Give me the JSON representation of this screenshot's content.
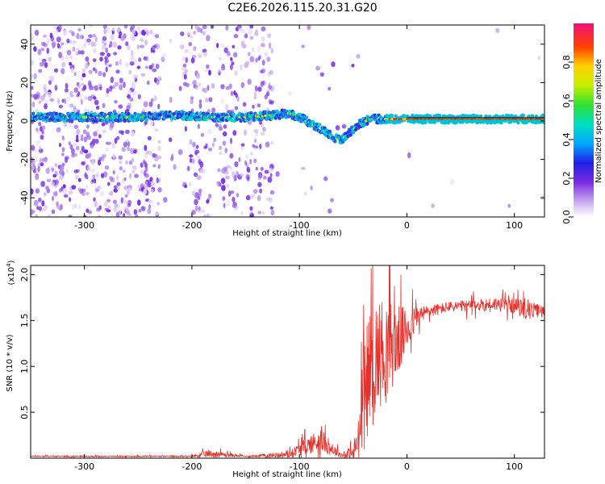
{
  "title": "C2E6.2026.115.20.31.G20",
  "chart_data": [
    {
      "type": "heatmap",
      "name": "spectrogram",
      "xlabel": "Height of straight line (km)",
      "ylabel": "Frequency (Hz)",
      "xlim": [
        -350,
        128
      ],
      "ylim": [
        -50,
        50
      ],
      "xticks": [
        -300,
        -200,
        -100,
        0,
        100
      ],
      "yticks": [
        -40,
        -20,
        0,
        20,
        40
      ],
      "center_line_freq": 0,
      "trace": {
        "x": [
          -350,
          -300,
          -250,
          -210,
          -180,
          -150,
          -125,
          -110,
          -100,
          -90,
          -80,
          -70,
          -62,
          -55,
          -45,
          -35,
          -25,
          -15,
          0,
          10,
          128
        ],
        "y": [
          2,
          2,
          2,
          3,
          2,
          2,
          3,
          4,
          2,
          -1,
          -4,
          -8,
          -10,
          -7,
          -2,
          1,
          1,
          1,
          1,
          1,
          1
        ]
      },
      "colorbar": {
        "label": "Normalized spectral amplitude",
        "range": [
          0,
          1
        ],
        "ticks": [
          0.0,
          0.2,
          0.4,
          0.6,
          0.8
        ]
      }
    },
    {
      "type": "line",
      "name": "snr",
      "xlabel": "Height of straight line (km)",
      "ylabel": "SNR (10 * v/v)",
      "scale_label": "(x10",
      "scale_exp": "4",
      "scale_close": ")",
      "xlim": [
        -350,
        128
      ],
      "ylim": [
        0,
        2.1
      ],
      "xticks": [
        -300,
        -200,
        -100,
        0,
        100
      ],
      "yticks": [
        0.5,
        1.0,
        1.5,
        2.0
      ],
      "color": "#e8302a",
      "envelope": {
        "x": [
          -350,
          -200,
          -185,
          -150,
          -110,
          -100,
          -90,
          -80,
          -70,
          -60,
          -50,
          -45,
          -40,
          -35,
          -30,
          -20,
          -10,
          0,
          10,
          20,
          40,
          60,
          80,
          100,
          110,
          128
        ],
        "base": [
          0.02,
          0.02,
          0.05,
          0.02,
          0.04,
          0.1,
          0.15,
          0.2,
          0.1,
          0.03,
          0.05,
          0.2,
          0.7,
          1.0,
          1.1,
          1.2,
          1.25,
          1.4,
          1.55,
          1.6,
          1.65,
          1.66,
          1.68,
          1.66,
          1.62,
          1.6
        ],
        "amp": [
          0.01,
          0.01,
          0.06,
          0.01,
          0.05,
          0.1,
          0.15,
          0.18,
          0.1,
          0.03,
          0.15,
          0.35,
          0.7,
          0.8,
          0.9,
          0.8,
          0.6,
          0.35,
          0.15,
          0.1,
          0.08,
          0.1,
          0.1,
          0.12,
          0.15,
          0.08
        ]
      }
    }
  ]
}
